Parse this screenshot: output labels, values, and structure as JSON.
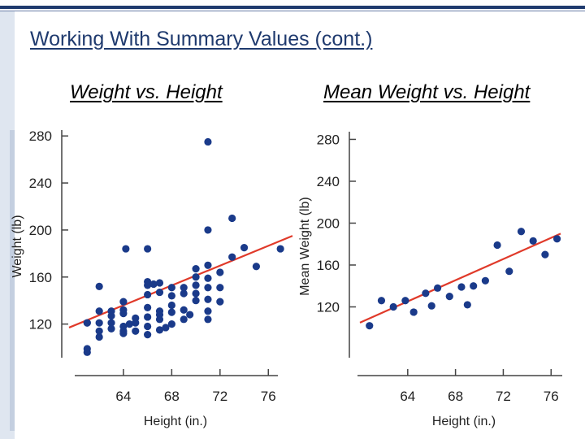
{
  "slide": {
    "title": "Working With Summary Values (cont.)",
    "subtitle_left": "Weight vs. Height",
    "subtitle_right": "Mean Weight vs. Height"
  },
  "colors": {
    "title": "#1f3a6e",
    "point": "#1a3a8a",
    "fit_line": "#e03a2a",
    "axis": "#444444"
  },
  "chart_data": [
    {
      "type": "scatter",
      "title": "Weight vs. Height",
      "xlabel": "Height (in.)",
      "ylabel": "Weight (lb)",
      "xlim": [
        59.5,
        78
      ],
      "ylim": [
        90,
        285
      ],
      "xticks": [
        64,
        68,
        72,
        76
      ],
      "yticks": [
        120,
        160,
        200,
        240,
        280
      ],
      "x": [
        61,
        61,
        61,
        61,
        62,
        62,
        62,
        62,
        62,
        63,
        63,
        63,
        63,
        64,
        64,
        64,
        64,
        64,
        64,
        64.2,
        64.5,
        65,
        65,
        65,
        66,
        66,
        66,
        66,
        66,
        66,
        66,
        66,
        66.5,
        67,
        67,
        67,
        67,
        67,
        67,
        67.5,
        68,
        68,
        68,
        68,
        68,
        69,
        69,
        69,
        69,
        69.5,
        70,
        70,
        70,
        70,
        70,
        71,
        71,
        71,
        71,
        71,
        71,
        71,
        71,
        72,
        72,
        72,
        73,
        73,
        74,
        75,
        77
      ],
      "y": [
        96,
        99,
        121,
        121,
        152,
        131,
        121,
        114,
        109,
        131,
        127,
        121,
        116,
        139,
        132,
        129,
        118,
        114,
        112,
        184,
        120,
        125,
        114,
        121,
        184,
        156,
        153,
        145,
        134,
        126,
        118,
        111,
        154,
        155,
        147,
        131,
        128,
        124,
        115,
        117,
        151,
        144,
        136,
        130,
        120,
        132,
        151,
        146,
        124,
        128,
        167,
        160,
        153,
        146,
        140,
        275,
        200,
        170,
        159,
        151,
        141,
        131,
        124,
        164,
        151,
        139,
        210,
        177,
        185,
        169,
        184
      ],
      "fit_line": [
        {
          "x": 59.5,
          "y": 117
        },
        {
          "x": 78,
          "y": 195
        }
      ]
    },
    {
      "type": "scatter",
      "title": "Mean Weight vs. Height",
      "xlabel": "Height (in.)",
      "ylabel": "Mean Weight (lb)",
      "xlim": [
        60,
        76.8
      ],
      "ylim": [
        87,
        285
      ],
      "xticks": [
        64,
        68,
        72,
        76
      ],
      "yticks": [
        120,
        160,
        200,
        240,
        280
      ],
      "x": [
        60.8,
        61.8,
        62.8,
        63.8,
        64.5,
        65.5,
        66,
        66.5,
        67.5,
        68.5,
        69,
        69.5,
        70.5,
        71.5,
        72.5,
        73.5,
        74.5,
        75.5,
        76.5
      ],
      "y": [
        102,
        126,
        120,
        126,
        115,
        133,
        121,
        138,
        130,
        139,
        122,
        140,
        145,
        179,
        154,
        192,
        183,
        170,
        185
      ],
      "fit_line": [
        {
          "x": 60,
          "y": 105
        },
        {
          "x": 76.8,
          "y": 190
        }
      ]
    }
  ]
}
